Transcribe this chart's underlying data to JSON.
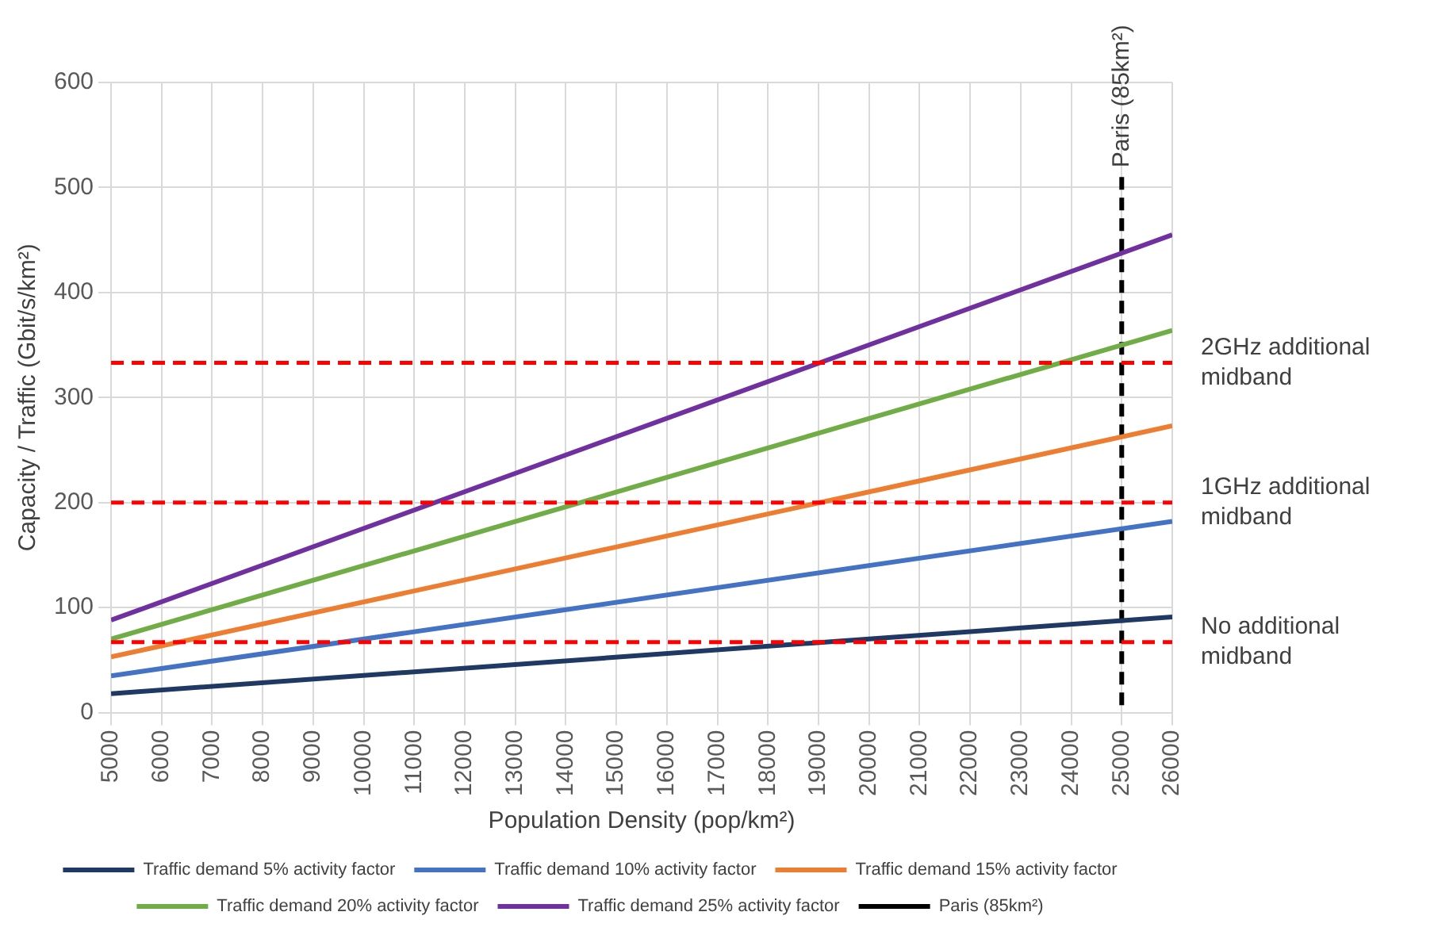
{
  "chart_data": {
    "type": "line",
    "xlabel": "Population Density (pop/km²)",
    "ylabel": "Capacity / Traffic (Gbit/s/km²)",
    "x": [
      5000,
      26000
    ],
    "series": [
      {
        "name": "Traffic demand 5% activity factor",
        "color": "#203864",
        "values": [
          18,
          91
        ]
      },
      {
        "name": "Traffic demand 10% activity factor",
        "color": "#4472c4",
        "values": [
          35,
          182
        ]
      },
      {
        "name": "Traffic demand 15% activity factor",
        "color": "#ed7d31",
        "values": [
          53,
          273
        ]
      },
      {
        "name": "Traffic demand 20% activity factor",
        "color": "#70ad47",
        "values": [
          70,
          364
        ]
      },
      {
        "name": "Traffic demand 25% activity factor",
        "color": "#7030a0",
        "values": [
          88,
          455
        ]
      },
      {
        "name": "Paris (85km²)",
        "color": "#000000",
        "x": [
          25000,
          25000
        ],
        "values": [
          510,
          0
        ],
        "line_style": "dashed"
      }
    ],
    "xlim": [
      5000,
      26000
    ],
    "xticks": [
      5000,
      6000,
      7000,
      8000,
      9000,
      10000,
      11000,
      12000,
      13000,
      14000,
      15000,
      16000,
      17000,
      18000,
      19000,
      20000,
      21000,
      22000,
      23000,
      24000,
      25000,
      26000
    ],
    "ylim": [
      0,
      600
    ],
    "yticks": [
      0,
      100,
      200,
      300,
      400,
      500,
      600
    ],
    "ref_lines": [
      {
        "axis": "y",
        "value": 333,
        "label": "2GHz additional midband",
        "color": "#ff0000",
        "line_style": "dashed"
      },
      {
        "axis": "y",
        "value": 200,
        "label": "1GHz additional midband",
        "color": "#ff0000",
        "line_style": "dashed"
      },
      {
        "axis": "y",
        "value": 67,
        "label": "No additional midband",
        "color": "#ff0000",
        "line_style": "dashed"
      }
    ],
    "grid": true,
    "legend": "bottom",
    "marker": "none",
    "line_style": "solid"
  }
}
